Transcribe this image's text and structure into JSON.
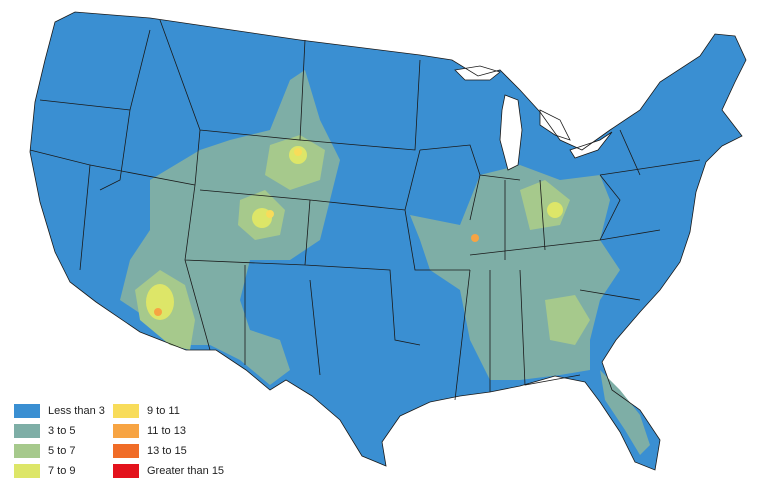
{
  "legend": {
    "items": [
      {
        "label": "Less than 3",
        "color": "#3a8fd2"
      },
      {
        "label": "3 to 5",
        "color": "#7eaea6"
      },
      {
        "label": "5 to 7",
        "color": "#a6c98c"
      },
      {
        "label": "7 to 9",
        "color": "#dde668"
      },
      {
        "label": "9 to 11",
        "color": "#f8dc5a"
      },
      {
        "label": "11 to 13",
        "color": "#f7a443"
      },
      {
        "label": "13 to 15",
        "color": "#f06c27"
      },
      {
        "label": "Greater than 15",
        "color": "#e3121c"
      }
    ]
  }
}
